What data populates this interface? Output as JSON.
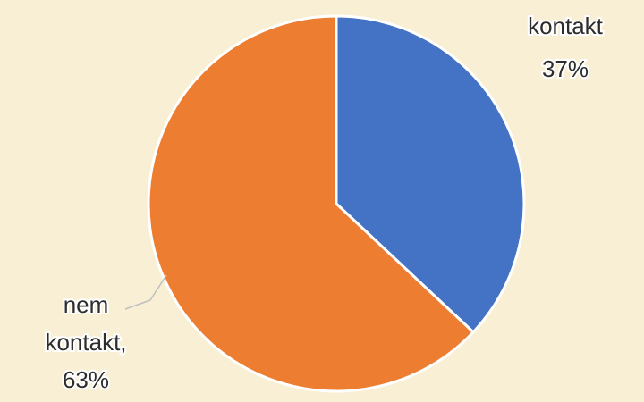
{
  "chart_data": {
    "type": "pie",
    "start_angle_deg": 0,
    "direction": "clockwise",
    "slices": [
      {
        "label_lines": [
          "kontakt",
          "37%"
        ],
        "value": 37,
        "color": "#4472c4"
      },
      {
        "label_lines": [
          "nem",
          "kontakt,",
          "63%"
        ],
        "value": 63,
        "color": "#ed7d31"
      }
    ],
    "legend": "none",
    "data_labels": "outside"
  },
  "background_color": "#f8efd4"
}
